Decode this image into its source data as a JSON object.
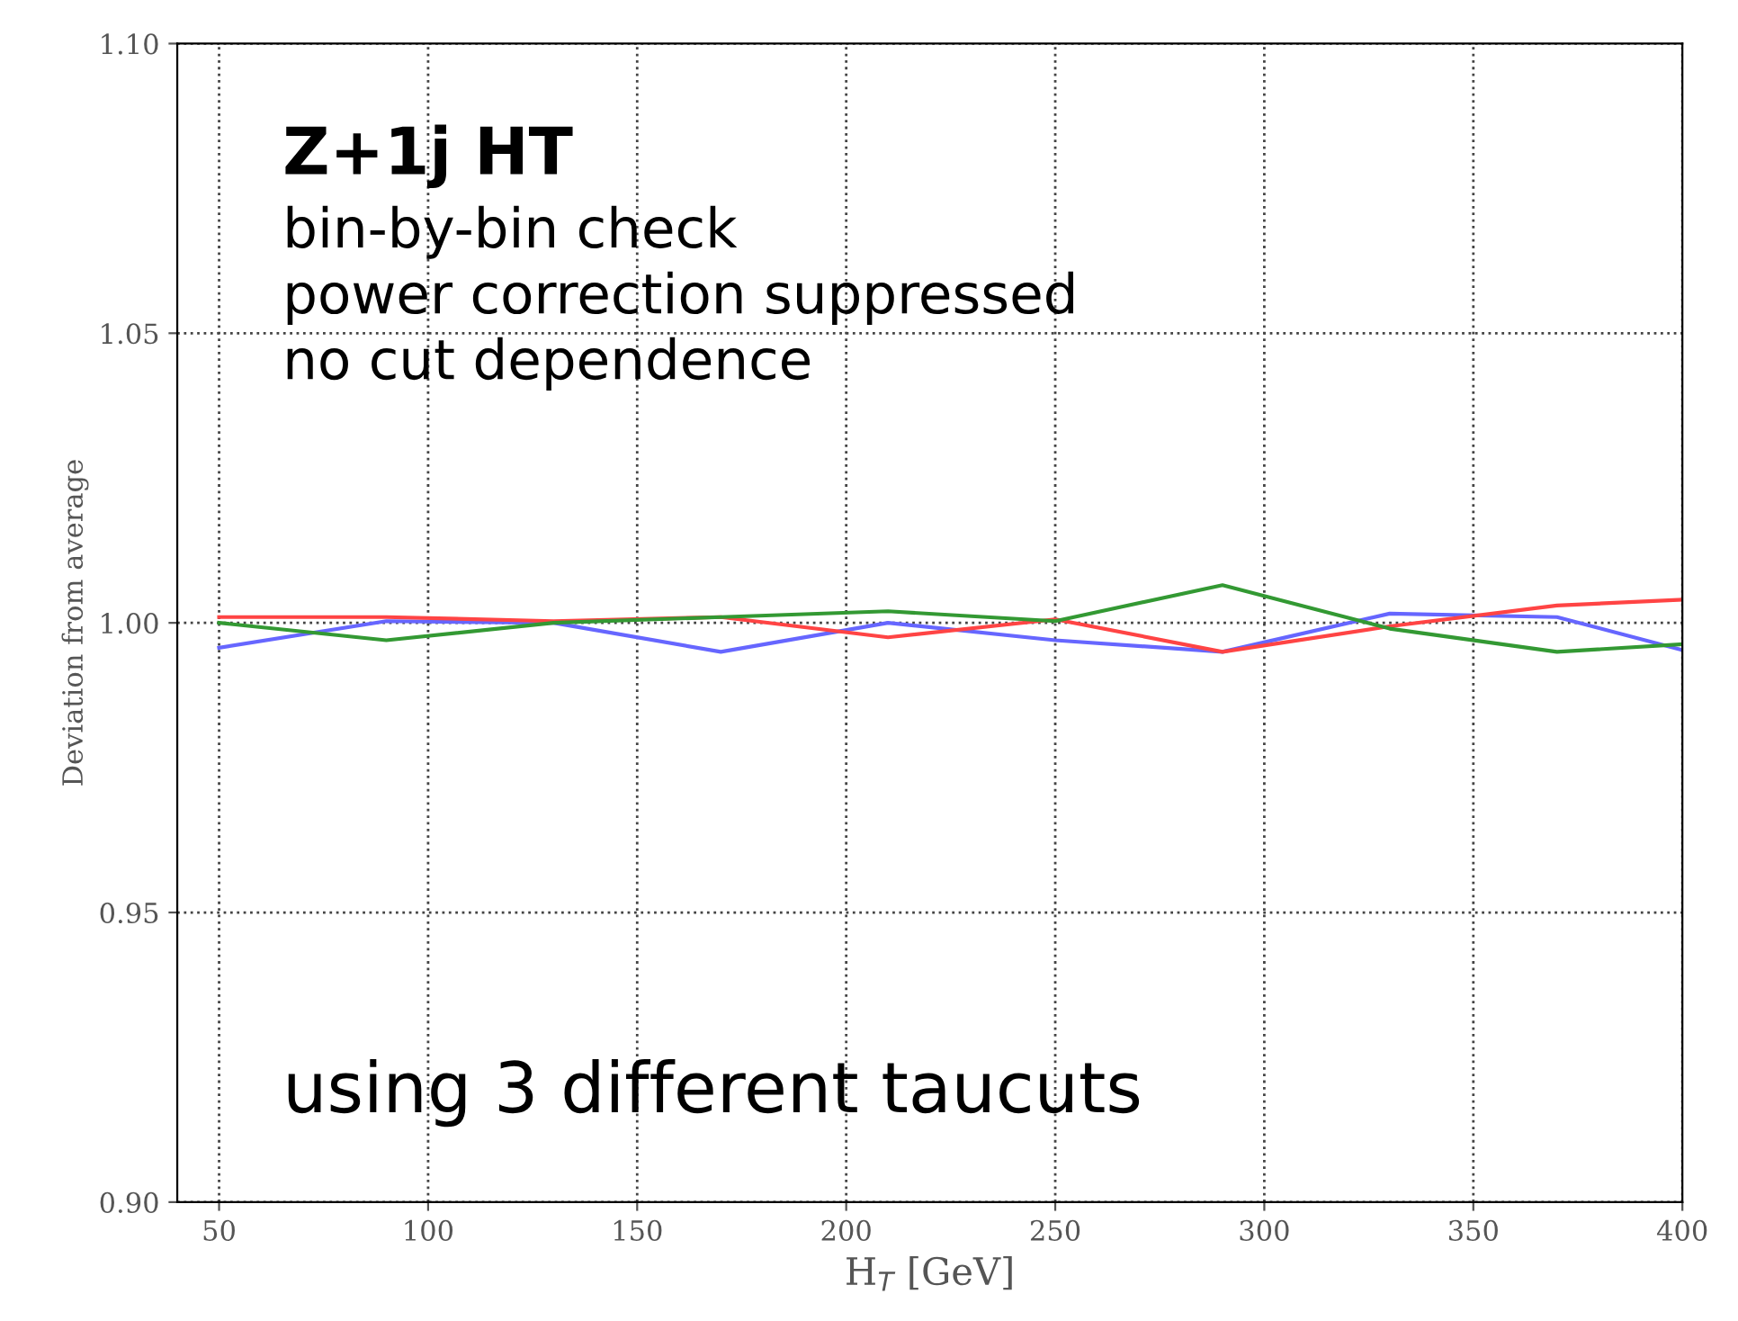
{
  "chart_data": {
    "type": "line",
    "title": "Z+1j HT",
    "xlabel": "H$_{T}$ [GeV]",
    "ylabel": "Deviation from average",
    "x": [
      50,
      90,
      130,
      170,
      210,
      250,
      290,
      330,
      370,
      400
    ],
    "series": [
      {
        "color": "#6666ff",
        "values": [
          0.9957,
          1.0003,
          1.0,
          0.995,
          1.0,
          0.997,
          0.995,
          1.0016,
          1.001,
          0.9953
        ]
      },
      {
        "color": "#ff4444",
        "values": [
          1.001,
          1.001,
          1.0003,
          1.001,
          0.9975,
          1.0006,
          0.995,
          0.9994,
          1.003,
          1.004
        ]
      },
      {
        "color": "#339933",
        "values": [
          1.0,
          0.997,
          1.0,
          1.001,
          1.002,
          1.0003,
          1.0065,
          0.999,
          0.995,
          0.9963
        ]
      }
    ],
    "xlim": [
      40,
      400
    ],
    "xticks": [
      50,
      100,
      150,
      200,
      250,
      300,
      350,
      400
    ],
    "ylim": [
      0.9,
      1.1
    ],
    "yticks": [
      {
        "value": 0.9,
        "label": "0.90"
      },
      {
        "value": 0.95,
        "label": "0.95"
      },
      {
        "value": 1.0,
        "label": "1.00"
      },
      {
        "value": 1.05,
        "label": "1.05"
      },
      {
        "value": 1.1,
        "label": "1.10"
      }
    ],
    "grid": true,
    "annotations": [
      "bin-by-bin check\npower correction suppressed\nno cut dependence",
      "using 3 different taucuts"
    ]
  }
}
